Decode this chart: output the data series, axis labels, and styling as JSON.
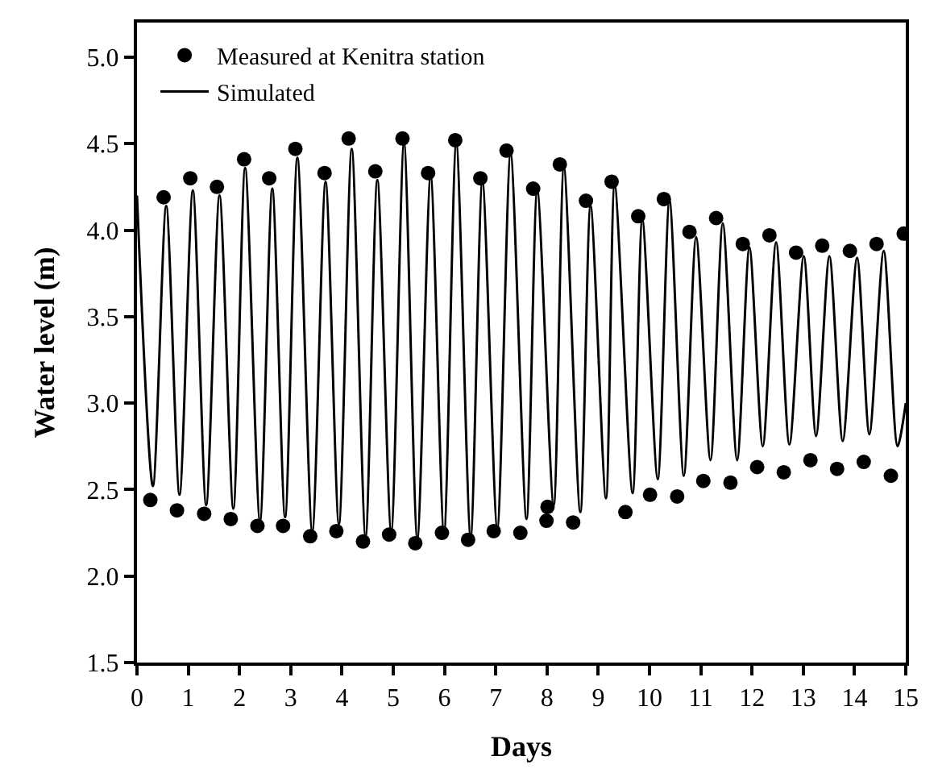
{
  "chart_data": {
    "type": "scatter",
    "xlabel": "Days",
    "ylabel": "Water level (m)",
    "xlim": [
      0,
      15
    ],
    "xticks": [
      0,
      1,
      2,
      3,
      4,
      5,
      6,
      7,
      8,
      9,
      10,
      11,
      12,
      13,
      14,
      15
    ],
    "ylim": [
      1.5,
      5.2
    ],
    "yticks": [
      1.5,
      {
        "value": 2,
        "label": "2.0"
      },
      2.5,
      {
        "value": 3,
        "label": "3.0"
      },
      3.5,
      {
        "value": 4,
        "label": "4.0"
      },
      4.5,
      {
        "value": 5,
        "label": "5.0"
      }
    ],
    "legend": "top left",
    "series": [
      {
        "name": "Measured at Kenitra station",
        "marker": "circle",
        "color": "#000000",
        "x": [
          0.52,
          1.04,
          1.56,
          2.09,
          2.58,
          3.09,
          3.66,
          4.13,
          4.65,
          5.18,
          5.68,
          6.21,
          6.7,
          7.21,
          7.73,
          8.25,
          8.76,
          9.26,
          9.78,
          10.28,
          10.78,
          11.3,
          11.82,
          12.34,
          12.86,
          13.37,
          13.91,
          14.43,
          14.96,
          0.26,
          0.78,
          1.31,
          1.83,
          2.35,
          2.85,
          3.38,
          3.89,
          4.41,
          4.92,
          5.43,
          5.95,
          6.46,
          6.96,
          7.48,
          7.99,
          8.01,
          8.51,
          9.53,
          10.01,
          10.54,
          11.05,
          11.58,
          12.1,
          12.62,
          13.14,
          13.66,
          14.18,
          14.71
        ],
        "values": [
          4.19,
          4.3,
          4.25,
          4.41,
          4.3,
          4.47,
          4.33,
          4.53,
          4.34,
          4.53,
          4.33,
          4.52,
          4.3,
          4.46,
          4.24,
          4.38,
          4.17,
          4.28,
          4.08,
          4.18,
          3.99,
          4.07,
          3.92,
          3.97,
          3.87,
          3.91,
          3.88,
          3.92,
          3.98,
          2.44,
          2.38,
          2.36,
          2.33,
          2.29,
          2.29,
          2.23,
          2.26,
          2.2,
          2.24,
          2.19,
          2.25,
          2.21,
          2.26,
          2.25,
          2.32,
          2.4,
          2.31,
          2.37,
          2.47,
          2.46,
          2.55,
          2.54,
          2.63,
          2.6,
          2.67,
          2.62,
          2.66,
          2.58
        ]
      },
      {
        "name": "Simulated",
        "type": "line",
        "marker": "none",
        "line_style": "solid",
        "color": "#000000",
        "x": [
          0,
          0.31,
          0.57,
          0.83,
          1.09,
          1.35,
          1.61,
          1.88,
          2.11,
          2.4,
          2.64,
          2.89,
          3.13,
          3.42,
          3.68,
          3.94,
          4.19,
          4.46,
          4.69,
          4.96,
          5.21,
          5.47,
          5.73,
          5.99,
          6.23,
          6.51,
          6.74,
          7.03,
          7.29,
          7.6,
          7.81,
          8.13,
          8.33,
          8.65,
          8.85,
          9.15,
          9.32,
          9.67,
          9.86,
          10.16,
          10.39,
          10.67,
          10.91,
          11.19,
          11.43,
          11.71,
          11.95,
          12.21,
          12.47,
          12.73,
          13.01,
          13.25,
          13.51,
          13.77,
          14.05,
          14.29,
          14.57,
          14.84,
          15
        ],
        "values": [
          4.2,
          2.52,
          4.14,
          2.47,
          4.23,
          2.41,
          4.2,
          2.39,
          4.36,
          2.32,
          4.24,
          2.34,
          4.42,
          2.26,
          4.28,
          2.3,
          4.47,
          2.23,
          4.29,
          2.26,
          4.5,
          2.22,
          4.31,
          2.25,
          4.5,
          2.23,
          4.28,
          2.28,
          4.44,
          2.33,
          4.23,
          2.41,
          4.36,
          2.37,
          4.14,
          2.45,
          4.26,
          2.48,
          4.06,
          2.56,
          4.17,
          2.58,
          3.96,
          2.67,
          4.04,
          2.67,
          3.9,
          2.75,
          3.93,
          2.76,
          3.85,
          2.81,
          3.85,
          2.78,
          3.84,
          2.82,
          3.88,
          2.75,
          3.0
        ]
      }
    ]
  }
}
